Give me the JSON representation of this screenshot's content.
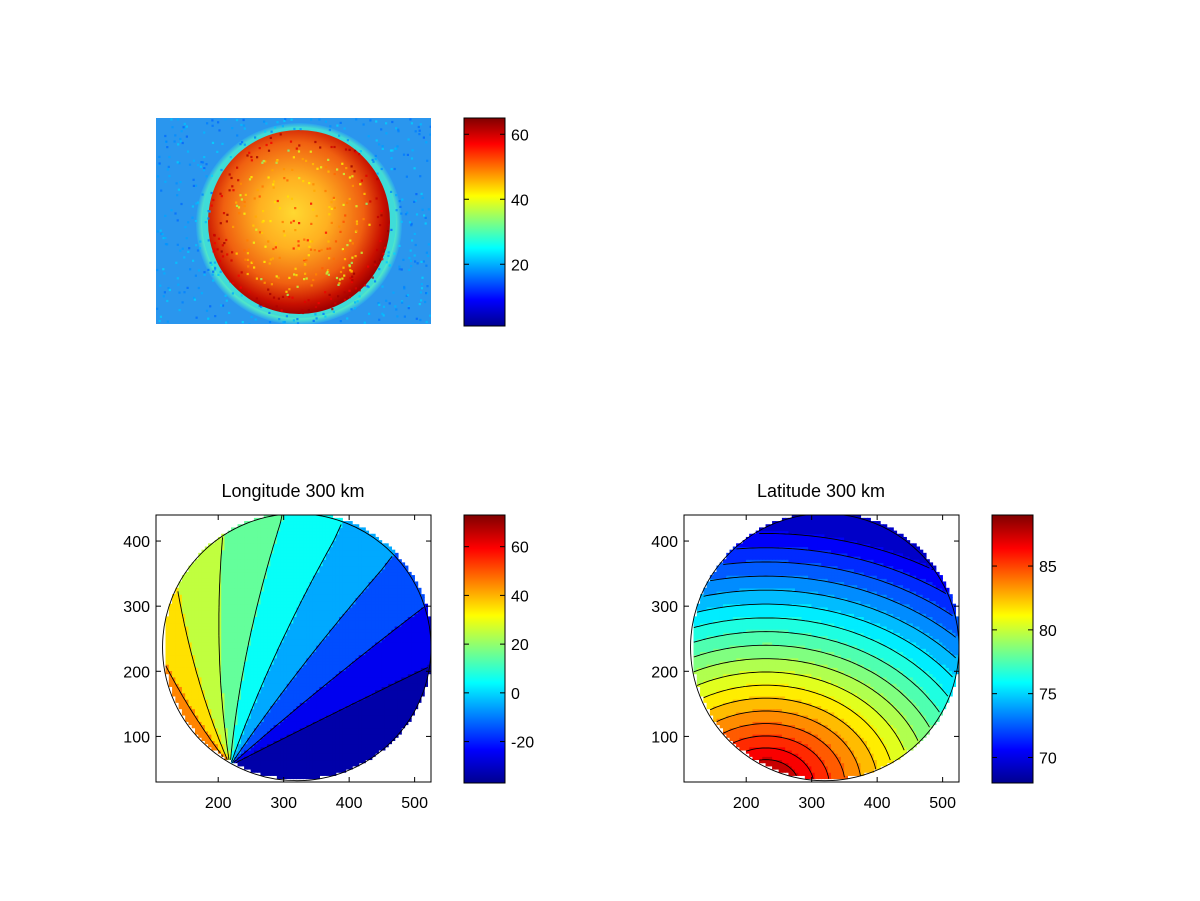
{
  "figure": {
    "background": "#ffffff",
    "colormap": "jet"
  },
  "chart_data": [
    {
      "type": "heatmap",
      "title": "",
      "xlabel": "",
      "ylabel": "",
      "axes_visible": false,
      "description_colors": {
        "background": "#2a96f0",
        "disk_outer": "#b80000",
        "disk_inner": "#ffd020",
        "ring": "#40e0d0"
      },
      "colorbar": {
        "range": [
          1,
          65
        ],
        "ticks": [
          20,
          40,
          60
        ]
      }
    },
    {
      "type": "heatmap",
      "title": "Longitude 300 km",
      "xlabel": "",
      "ylabel": "",
      "xlim": [
        105,
        525
      ],
      "ylim": [
        30,
        440
      ],
      "xticks": [
        200,
        300,
        400,
        500
      ],
      "yticks": [
        100,
        200,
        300,
        400
      ],
      "disk": {
        "center": [
          320,
          237
        ],
        "radius": 205
      },
      "value_range": [
        -35,
        73
      ],
      "contour_levels": [
        -30,
        -20,
        -10,
        0,
        10,
        20,
        30,
        40,
        50,
        60,
        70
      ],
      "grid": false,
      "colorbar": {
        "range": [
          -37,
          73
        ],
        "ticks": [
          -20,
          0,
          20,
          40,
          60
        ]
      }
    },
    {
      "type": "heatmap",
      "title": "Latitude 300 km",
      "xlabel": "",
      "ylabel": "",
      "xlim": [
        105,
        525
      ],
      "ylim": [
        30,
        440
      ],
      "xticks": [
        200,
        300,
        400,
        500
      ],
      "yticks": [
        100,
        200,
        300,
        400
      ],
      "disk": {
        "center": [
          320,
          237
        ],
        "radius": 205
      },
      "value_range": [
        68.5,
        89
      ],
      "contour_levels": [
        69,
        70,
        71,
        72,
        73,
        74,
        75,
        76,
        77,
        78,
        79,
        80,
        81,
        82,
        83,
        84,
        85,
        86,
        87,
        88
      ],
      "grid": false,
      "colorbar": {
        "range": [
          68,
          89
        ],
        "ticks": [
          70,
          75,
          80,
          85
        ]
      }
    }
  ]
}
